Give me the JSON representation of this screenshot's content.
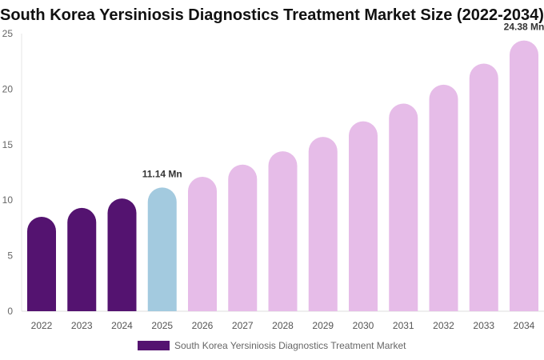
{
  "chart_data": {
    "type": "bar",
    "title": "South Korea Yersiniosis Diagnostics Treatment Market Size (2022-2034)",
    "categories": [
      "2022",
      "2023",
      "2024",
      "2025",
      "2026",
      "2027",
      "2028",
      "2029",
      "2030",
      "2031",
      "2032",
      "2033",
      "2034"
    ],
    "series": [
      {
        "name": "South Korea Yersiniosis Diagnostics Treatment Market",
        "values": [
          8.5,
          9.3,
          10.15,
          11.14,
          12.1,
          13.2,
          14.4,
          15.7,
          17.1,
          18.7,
          20.4,
          22.3,
          24.38
        ]
      }
    ],
    "data_labels": {
      "2025": "11.14 Mn",
      "2034": "24.38 Mn"
    },
    "ylim": [
      0,
      25
    ],
    "yticks": [
      0,
      5,
      10,
      15,
      20,
      25
    ],
    "grid": false,
    "legend": "bottom",
    "colors": {
      "historical": "#541370",
      "current": "#a3cadf",
      "forecast": "#e6bce8"
    }
  }
}
